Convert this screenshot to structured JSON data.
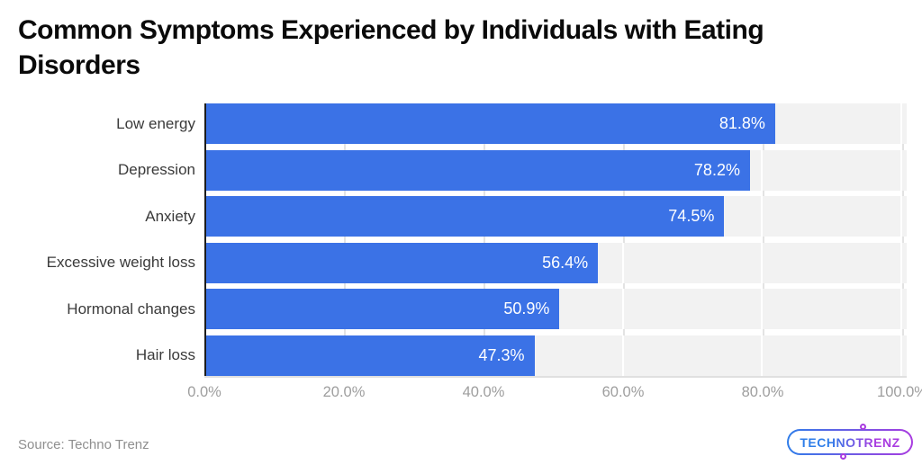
{
  "title": "Common Symptoms Experienced by Individuals with Eating Disorders",
  "source_text": "Source: Techno Trenz",
  "logo": {
    "text": "TECHNOTRENZ",
    "gradient_start": "#2e7de9",
    "gradient_end": "#a93be0"
  },
  "colors": {
    "bar": "#3b72e6",
    "bar_value_label": "#ffffff",
    "row_track": "#f2f2f2",
    "gridline": "#e3e3e3",
    "y_axis_line": "#1c1c1c",
    "tick_label": "#9e9e9e",
    "category_label": "#3a3a3a",
    "title_text": "#0a0a0a",
    "source": "#8f8f8f"
  },
  "chart_data": {
    "type": "bar",
    "orientation": "horizontal",
    "title": "Common Symptoms Experienced by Individuals with Eating Disorders",
    "categories": [
      "Low energy",
      "Depression",
      "Anxiety",
      "Excessive weight loss",
      "Hormonal changes",
      "Hair loss"
    ],
    "values": [
      81.8,
      78.2,
      74.5,
      56.4,
      50.9,
      47.3
    ],
    "value_labels": [
      "81.8%",
      "78.2%",
      "74.5%",
      "56.4%",
      "50.9%",
      "47.3%"
    ],
    "x_ticks_values": [
      0,
      20,
      40,
      60,
      80,
      100
    ],
    "x_tick_labels": [
      "0.0%",
      "20.0%",
      "40.0%",
      "60.0%",
      "80.0%",
      "100.0%"
    ],
    "xlim": [
      0,
      100
    ],
    "xlabel": "",
    "ylabel": "",
    "grid": "vertical",
    "legend": false,
    "bar_labels_inside": true,
    "source": "Source: Techno Trenz"
  }
}
